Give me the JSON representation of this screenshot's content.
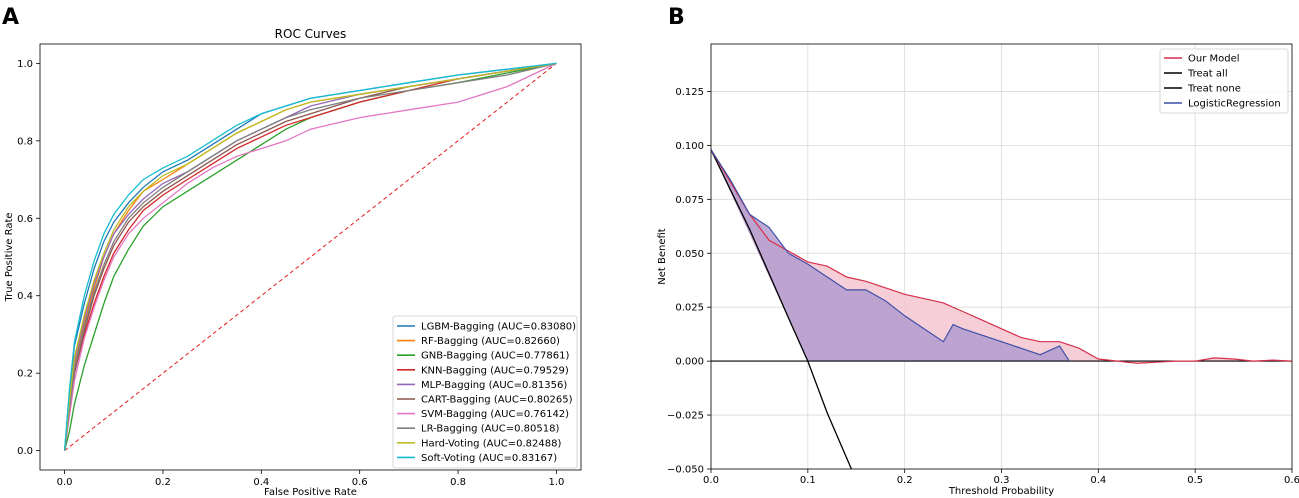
{
  "panels": {
    "a_label": "A",
    "b_label": "B"
  },
  "chart_data": [
    {
      "type": "line",
      "title": "ROC Curves",
      "xlabel": "False Positive Rate",
      "ylabel": "True Positive Rate",
      "xlim": [
        -0.05,
        1.05
      ],
      "ylim": [
        -0.05,
        1.05
      ],
      "xticks": [
        "0.0",
        "0.2",
        "0.4",
        "0.6",
        "0.8",
        "1.0"
      ],
      "yticks": [
        "0.0",
        "0.2",
        "0.4",
        "0.6",
        "0.8",
        "1.0"
      ],
      "legend_position": "lower-right",
      "reference_line": {
        "name": "chance",
        "color": "#e41a1c",
        "style": "dashed",
        "x": [
          0,
          1
        ],
        "y": [
          0,
          1
        ]
      },
      "series": [
        {
          "name": "LGBM-Bagging (AUC=0.83080)",
          "color": "#1f77b4",
          "x": [
            0,
            0.01,
            0.02,
            0.04,
            0.06,
            0.08,
            0.1,
            0.13,
            0.16,
            0.2,
            0.25,
            0.3,
            0.35,
            0.4,
            0.45,
            0.5,
            0.6,
            0.7,
            0.8,
            0.9,
            1.0
          ],
          "y": [
            0,
            0.15,
            0.27,
            0.38,
            0.47,
            0.54,
            0.59,
            0.64,
            0.68,
            0.72,
            0.75,
            0.79,
            0.83,
            0.87,
            0.89,
            0.91,
            0.93,
            0.95,
            0.97,
            0.985,
            1.0
          ]
        },
        {
          "name": "RF-Bagging (AUC=0.82660)",
          "color": "#ff7f0e",
          "x": [
            0,
            0.01,
            0.02,
            0.04,
            0.06,
            0.08,
            0.1,
            0.13,
            0.16,
            0.2,
            0.25,
            0.3,
            0.35,
            0.4,
            0.45,
            0.5,
            0.6,
            0.7,
            0.8,
            0.9,
            1.0
          ],
          "y": [
            0,
            0.12,
            0.22,
            0.33,
            0.42,
            0.5,
            0.56,
            0.62,
            0.67,
            0.7,
            0.74,
            0.78,
            0.82,
            0.85,
            0.88,
            0.9,
            0.92,
            0.94,
            0.96,
            0.98,
            1.0
          ]
        },
        {
          "name": "GNB-Bagging (AUC=0.77861)",
          "color": "#2ca02c",
          "x": [
            0,
            0.01,
            0.02,
            0.04,
            0.06,
            0.08,
            0.1,
            0.13,
            0.16,
            0.2,
            0.25,
            0.3,
            0.35,
            0.4,
            0.45,
            0.5,
            0.6,
            0.7,
            0.8,
            0.9,
            1.0
          ],
          "y": [
            0,
            0.05,
            0.12,
            0.22,
            0.3,
            0.38,
            0.45,
            0.52,
            0.58,
            0.63,
            0.67,
            0.71,
            0.75,
            0.79,
            0.83,
            0.86,
            0.9,
            0.93,
            0.95,
            0.975,
            1.0
          ]
        },
        {
          "name": "KNN-Bagging (AUC=0.79529)",
          "color": "#d62728",
          "x": [
            0,
            0.01,
            0.02,
            0.04,
            0.06,
            0.08,
            0.1,
            0.13,
            0.16,
            0.2,
            0.25,
            0.3,
            0.35,
            0.4,
            0.45,
            0.5,
            0.6,
            0.7,
            0.8,
            0.9,
            1.0
          ],
          "y": [
            0,
            0.1,
            0.2,
            0.3,
            0.38,
            0.45,
            0.51,
            0.57,
            0.62,
            0.66,
            0.7,
            0.74,
            0.78,
            0.81,
            0.84,
            0.86,
            0.9,
            0.93,
            0.96,
            0.98,
            1.0
          ]
        },
        {
          "name": "MLP-Bagging (AUC=0.81356)",
          "color": "#9467bd",
          "x": [
            0,
            0.01,
            0.02,
            0.04,
            0.06,
            0.08,
            0.1,
            0.13,
            0.16,
            0.2,
            0.25,
            0.3,
            0.35,
            0.4,
            0.45,
            0.5,
            0.6,
            0.7,
            0.8,
            0.9,
            1.0
          ],
          "y": [
            0,
            0.12,
            0.23,
            0.34,
            0.43,
            0.5,
            0.56,
            0.61,
            0.65,
            0.69,
            0.72,
            0.76,
            0.8,
            0.83,
            0.86,
            0.89,
            0.92,
            0.94,
            0.96,
            0.98,
            1.0
          ]
        },
        {
          "name": "CART-Bagging (AUC=0.80265)",
          "color": "#8c564b",
          "x": [
            0,
            0.01,
            0.02,
            0.04,
            0.06,
            0.08,
            0.1,
            0.13,
            0.16,
            0.2,
            0.25,
            0.3,
            0.35,
            0.4,
            0.45,
            0.5,
            0.6,
            0.7,
            0.8,
            0.9,
            1.0
          ],
          "y": [
            0,
            0.1,
            0.2,
            0.31,
            0.4,
            0.47,
            0.53,
            0.59,
            0.63,
            0.67,
            0.71,
            0.75,
            0.79,
            0.82,
            0.85,
            0.87,
            0.91,
            0.94,
            0.96,
            0.98,
            1.0
          ]
        },
        {
          "name": "SVM-Bagging (AUC=0.76142)",
          "color": "#e377c2",
          "x": [
            0,
            0.01,
            0.02,
            0.04,
            0.06,
            0.08,
            0.1,
            0.13,
            0.16,
            0.2,
            0.25,
            0.3,
            0.35,
            0.4,
            0.45,
            0.5,
            0.6,
            0.7,
            0.8,
            0.9,
            1.0
          ],
          "y": [
            0,
            0.09,
            0.18,
            0.29,
            0.37,
            0.44,
            0.5,
            0.56,
            0.6,
            0.64,
            0.69,
            0.73,
            0.76,
            0.78,
            0.8,
            0.83,
            0.86,
            0.88,
            0.9,
            0.94,
            1.0
          ]
        },
        {
          "name": "LR-Bagging (AUC=0.80518)",
          "color": "#7f7f7f",
          "x": [
            0,
            0.01,
            0.02,
            0.04,
            0.06,
            0.08,
            0.1,
            0.13,
            0.16,
            0.2,
            0.25,
            0.3,
            0.35,
            0.4,
            0.45,
            0.5,
            0.6,
            0.7,
            0.8,
            0.9,
            1.0
          ],
          "y": [
            0,
            0.11,
            0.21,
            0.32,
            0.41,
            0.48,
            0.54,
            0.6,
            0.64,
            0.68,
            0.72,
            0.76,
            0.8,
            0.83,
            0.86,
            0.88,
            0.91,
            0.93,
            0.95,
            0.97,
            1.0
          ]
        },
        {
          "name": "Hard-Voting (AUC=0.82488)",
          "color": "#bcbd22",
          "x": [
            0,
            0.01,
            0.02,
            0.04,
            0.06,
            0.08,
            0.1,
            0.13,
            0.16,
            0.2,
            0.25,
            0.3,
            0.35,
            0.4,
            0.45,
            0.5,
            0.6,
            0.7,
            0.8,
            0.9,
            1.0
          ],
          "y": [
            0,
            0.13,
            0.24,
            0.35,
            0.44,
            0.51,
            0.57,
            0.63,
            0.67,
            0.71,
            0.74,
            0.78,
            0.82,
            0.85,
            0.88,
            0.9,
            0.92,
            0.94,
            0.96,
            0.98,
            1.0
          ]
        },
        {
          "name": "Soft-Voting (AUC=0.83167)",
          "color": "#17becf",
          "x": [
            0,
            0.01,
            0.02,
            0.04,
            0.06,
            0.08,
            0.1,
            0.13,
            0.16,
            0.2,
            0.25,
            0.3,
            0.35,
            0.4,
            0.45,
            0.5,
            0.6,
            0.7,
            0.8,
            0.9,
            1.0
          ],
          "y": [
            0,
            0.16,
            0.28,
            0.4,
            0.49,
            0.56,
            0.61,
            0.66,
            0.7,
            0.73,
            0.76,
            0.8,
            0.84,
            0.87,
            0.89,
            0.91,
            0.93,
            0.95,
            0.97,
            0.985,
            1.0
          ]
        }
      ]
    },
    {
      "type": "line",
      "title": "",
      "xlabel": "Threshold Probability",
      "ylabel": "Net Benefit",
      "xlim": [
        0.0,
        0.6
      ],
      "ylim": [
        -0.05,
        0.147
      ],
      "xticks": [
        "0.0",
        "0.1",
        "0.2",
        "0.3",
        "0.4",
        "0.5",
        "0.6"
      ],
      "yticks": [
        "−0.050",
        "−0.025",
        "0.000",
        "0.025",
        "0.050",
        "0.075",
        "0.100",
        "0.125"
      ],
      "grid": true,
      "legend_position": "top-right",
      "series": [
        {
          "name": "Our Model",
          "color": "#d62f4a",
          "fill": "#f5c6d0",
          "x": [
            0,
            0.02,
            0.04,
            0.06,
            0.08,
            0.1,
            0.12,
            0.14,
            0.16,
            0.18,
            0.2,
            0.22,
            0.24,
            0.26,
            0.28,
            0.3,
            0.32,
            0.34,
            0.36,
            0.38,
            0.4,
            0.42,
            0.44,
            0.46,
            0.48,
            0.5,
            0.52,
            0.54,
            0.56,
            0.58,
            0.6
          ],
          "y": [
            0.098,
            0.083,
            0.068,
            0.056,
            0.051,
            0.046,
            0.044,
            0.039,
            0.037,
            0.034,
            0.031,
            0.029,
            0.027,
            0.023,
            0.019,
            0.015,
            0.011,
            0.009,
            0.009,
            0.006,
            0.001,
            0.0,
            -0.001,
            -0.0005,
            0.0,
            0.0,
            0.0015,
            0.001,
            0.0,
            0.0005,
            0.0
          ]
        },
        {
          "name": "Treat all",
          "color": "#000000",
          "x": [
            0,
            0.04,
            0.08,
            0.1,
            0.12,
            0.145
          ],
          "y": [
            0.098,
            0.061,
            0.02,
            0.0,
            -0.024,
            -0.05
          ]
        },
        {
          "name": "Treat none",
          "color": "#000000",
          "x": [
            0,
            0.6
          ],
          "y": [
            0.0,
            0.0
          ]
        },
        {
          "name": "LogisticRegression",
          "color": "#3f4fa8",
          "fill": "#b39bcf",
          "x": [
            0,
            0.02,
            0.04,
            0.06,
            0.08,
            0.1,
            0.12,
            0.14,
            0.16,
            0.18,
            0.2,
            0.22,
            0.24,
            0.25,
            0.26,
            0.28,
            0.3,
            0.32,
            0.34,
            0.36,
            0.37
          ],
          "y": [
            0.098,
            0.084,
            0.068,
            0.062,
            0.05,
            0.045,
            0.039,
            0.033,
            0.033,
            0.028,
            0.021,
            0.015,
            0.009,
            0.017,
            0.015,
            0.012,
            0.009,
            0.006,
            0.003,
            0.007,
            0.0
          ]
        }
      ]
    }
  ]
}
